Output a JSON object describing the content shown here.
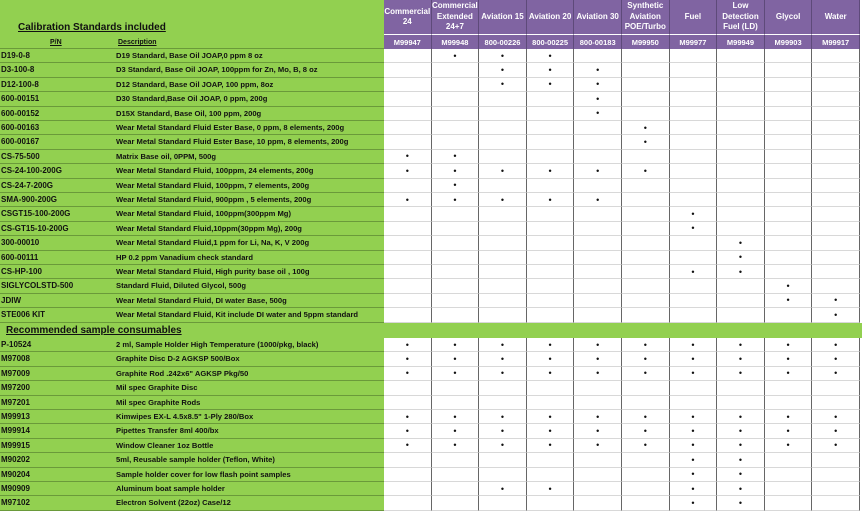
{
  "header": {
    "section1_title": "Calibration Standards included",
    "pn_label": "P/N",
    "description_label": "Description"
  },
  "columns": [
    {
      "name": "Commercial 24",
      "code": "M99947"
    },
    {
      "name": "Commercial Extended 24+7",
      "code": "M99948"
    },
    {
      "name": "Aviation 15",
      "code": "800-00226"
    },
    {
      "name": "Aviation 20",
      "code": "800-00225"
    },
    {
      "name": "Aviation 30",
      "code": "800-00183"
    },
    {
      "name": "Synthetic Aviation POE/Turbo",
      "code": "M99950"
    },
    {
      "name": "Fuel",
      "code": "M99977"
    },
    {
      "name": "Low Detection Fuel (LD)",
      "code": "M99949"
    },
    {
      "name": "Glycol",
      "code": "M99903"
    },
    {
      "name": "Water",
      "code": "M99917"
    }
  ],
  "colors": {
    "green": "#92d050",
    "purple": "#8064a2"
  },
  "marker": "•",
  "calibration_rows": [
    {
      "pn": "D19-0-8",
      "desc": "D19  Standard, Base Oil JOAP,0 ppm  8 oz",
      "marks": [
        0,
        1,
        1,
        1,
        0,
        0,
        0,
        0,
        0,
        0
      ]
    },
    {
      "pn": "D3-100-8",
      "desc": "D3 Standard, Base Oil JOAP, 100ppm for Zn, Mo, B, 8 oz",
      "marks": [
        0,
        0,
        1,
        1,
        1,
        0,
        0,
        0,
        0,
        0
      ]
    },
    {
      "pn": "D12-100-8",
      "desc": "D12 Standard, Base Oil JOAP, 100 ppm, 8oz",
      "marks": [
        0,
        0,
        1,
        1,
        1,
        0,
        0,
        0,
        0,
        0
      ]
    },
    {
      "pn": "600-00151",
      "desc": "D30 Standard,Base Oil JOAP, 0 ppm, 200g",
      "marks": [
        0,
        0,
        0,
        0,
        1,
        0,
        0,
        0,
        0,
        0
      ]
    },
    {
      "pn": "600-00152",
      "desc": "D15X Standard, Base Oil, 100 ppm, 200g",
      "marks": [
        0,
        0,
        0,
        0,
        1,
        0,
        0,
        0,
        0,
        0
      ]
    },
    {
      "pn": "600-00163",
      "desc": "Wear Metal Standard Fluid Ester Base,  0 ppm, 8 elements, 200g",
      "marks": [
        0,
        0,
        0,
        0,
        0,
        1,
        0,
        0,
        0,
        0
      ]
    },
    {
      "pn": "600-00167",
      "desc": "Wear Metal Standard Fluid Ester Base,  10 ppm, 8 elements, 200g",
      "marks": [
        0,
        0,
        0,
        0,
        0,
        1,
        0,
        0,
        0,
        0
      ]
    },
    {
      "pn": "CS-75-500",
      "desc": "Matrix Base oil, 0PPM, 500g",
      "marks": [
        1,
        1,
        0,
        0,
        0,
        0,
        0,
        0,
        0,
        0
      ]
    },
    {
      "pn": "CS-24-100-200G",
      "desc": "Wear Metal Standard Fluid, 100ppm, 24 elements, 200g",
      "marks": [
        1,
        1,
        1,
        1,
        1,
        1,
        0,
        0,
        0,
        0
      ]
    },
    {
      "pn": "CS-24-7-200G",
      "desc": "Wear Metal Standard Fluid, 100ppm, 7 elements, 200g",
      "marks": [
        0,
        1,
        0,
        0,
        0,
        0,
        0,
        0,
        0,
        0
      ]
    },
    {
      "pn": "SMA-900-200G",
      "desc": "Wear Metal Standard Fluid, 900ppm , 5 elements, 200g",
      "marks": [
        1,
        1,
        1,
        1,
        1,
        0,
        0,
        0,
        0,
        0
      ]
    },
    {
      "pn": "CSGT15-100-200G",
      "desc": "Wear Metal Standard Fluid, 100ppm(300ppm Mg)",
      "marks": [
        0,
        0,
        0,
        0,
        0,
        0,
        1,
        0,
        0,
        0
      ]
    },
    {
      "pn": "CS-GT15-10-200G",
      "desc": "Wear Metal Standard Fluid,10ppm(30ppm Mg), 200g",
      "marks": [
        0,
        0,
        0,
        0,
        0,
        0,
        1,
        0,
        0,
        0
      ]
    },
    {
      "pn": "300-00010",
      "desc": "Wear Metal Standard Fluid,1 ppm for Li, Na, K, V 200g",
      "marks": [
        0,
        0,
        0,
        0,
        0,
        0,
        0,
        1,
        0,
        0
      ]
    },
    {
      "pn": "600-00111",
      "desc": "HP 0.2 ppm Vanadium check standard",
      "marks": [
        0,
        0,
        0,
        0,
        0,
        0,
        0,
        1,
        0,
        0
      ]
    },
    {
      "pn": "CS-HP-100",
      "desc": "Wear Metal Standard Fluid, High purity base oil , 100g",
      "marks": [
        0,
        0,
        0,
        0,
        0,
        0,
        1,
        1,
        0,
        0
      ]
    },
    {
      "pn": "SIGLYCOLSTD-500",
      "desc": "Standard Fluid, Diluted Glycol, 500g",
      "marks": [
        0,
        0,
        0,
        0,
        0,
        0,
        0,
        0,
        1,
        0
      ]
    },
    {
      "pn": "JDIW",
      "desc": "Wear Metal Standard Fluid, DI water Base, 500g",
      "marks": [
        0,
        0,
        0,
        0,
        0,
        0,
        0,
        0,
        1,
        1
      ]
    },
    {
      "pn": "STE006 KIT",
      "desc": "Wear Metal Standard Fluid, Kit include DI water and 5ppm standard",
      "marks": [
        0,
        0,
        0,
        0,
        0,
        0,
        0,
        0,
        0,
        1
      ]
    }
  ],
  "section2_title": "Recommended sample consumables",
  "consumable_rows": [
    {
      "pn": "P-10524",
      "desc": "2 ml, Sample Holder High Temperature (1000/pkg, black)",
      "marks": [
        1,
        1,
        1,
        1,
        1,
        1,
        1,
        1,
        1,
        1
      ]
    },
    {
      "pn": "M97008",
      "desc": "Graphite Disc D-2 AGKSP 500/Box",
      "marks": [
        1,
        1,
        1,
        1,
        1,
        1,
        1,
        1,
        1,
        1
      ]
    },
    {
      "pn": "M97009",
      "desc": "Graphite Rod .242x6\" AGKSP Pkg/50",
      "marks": [
        1,
        1,
        1,
        1,
        1,
        1,
        1,
        1,
        1,
        1
      ]
    },
    {
      "pn": "M97200",
      "desc": "Mil spec Graphite Disc",
      "marks": [
        0,
        0,
        0,
        0,
        0,
        0,
        0,
        0,
        0,
        0
      ]
    },
    {
      "pn": "M97201",
      "desc": "Mil spec Graphite Rods",
      "marks": [
        0,
        0,
        0,
        0,
        0,
        0,
        0,
        0,
        0,
        0
      ]
    },
    {
      "pn": "M99913",
      "desc": "Kimwipes EX-L 4.5x8.5\" 1-Ply 280/Box",
      "marks": [
        1,
        1,
        1,
        1,
        1,
        1,
        1,
        1,
        1,
        1
      ]
    },
    {
      "pn": "M99914",
      "desc": "Pipettes Transfer 8ml 400/bx",
      "marks": [
        1,
        1,
        1,
        1,
        1,
        1,
        1,
        1,
        1,
        1
      ]
    },
    {
      "pn": "M99915",
      "desc": "Window Cleaner 1oz Bottle",
      "marks": [
        1,
        1,
        1,
        1,
        1,
        1,
        1,
        1,
        1,
        1
      ]
    },
    {
      "pn": "M90202",
      "desc": "5ml, Reusable sample holder (Teflon, White)",
      "marks": [
        0,
        0,
        0,
        0,
        0,
        0,
        1,
        1,
        0,
        0
      ]
    },
    {
      "pn": "M90204",
      "desc": "Sample holder cover for low flash point samples",
      "marks": [
        0,
        0,
        0,
        0,
        0,
        0,
        1,
        1,
        0,
        0
      ]
    },
    {
      "pn": "M90909",
      "desc": "Aluminum boat sample holder",
      "marks": [
        0,
        0,
        1,
        1,
        0,
        0,
        1,
        1,
        0,
        0
      ]
    },
    {
      "pn": "M97102",
      "desc": "Electron Solvent (22oz) Case/12",
      "marks": [
        0,
        0,
        0,
        0,
        0,
        0,
        1,
        1,
        0,
        0
      ]
    }
  ]
}
